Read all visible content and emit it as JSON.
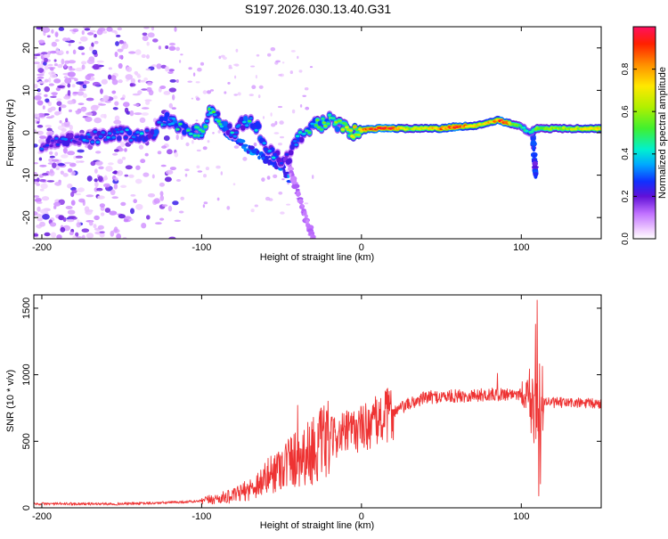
{
  "title": "S197.2026.030.13.40.G31",
  "chart_data": [
    {
      "type": "heatmap",
      "xlabel": "Height of straight line (km)",
      "ylabel": "Frequency (Hz)",
      "xlim": [
        -205,
        150
      ],
      "ylim": [
        -25,
        25
      ],
      "x_ticks": [
        -200,
        -100,
        0,
        100
      ],
      "y_ticks": [
        20,
        10,
        0,
        -10,
        -20
      ],
      "colorbar": {
        "label": "Normalized spectral amplitude",
        "range": [
          0,
          1
        ],
        "ticks": [
          0.0,
          0.2,
          0.4,
          0.6,
          0.8
        ],
        "tick_labels": [
          "0.0",
          "0.2",
          "0.4",
          "0.6",
          "0.8"
        ]
      },
      "ridge": {
        "x": [
          -200,
          -190,
          -175,
          -160,
          -150,
          -140,
          -130,
          -125,
          -120,
          -110,
          -100,
          -95,
          -90,
          -85,
          -80,
          -75,
          -70,
          -65,
          -60,
          -55,
          -50,
          -45,
          -40,
          -35,
          -30,
          -25,
          -20,
          -15,
          -10,
          -5,
          0,
          5,
          10,
          20,
          30,
          40,
          50,
          60,
          70,
          80,
          85,
          90,
          95,
          100,
          105,
          110,
          120,
          130,
          140,
          150
        ],
        "freq": [
          -3,
          -2,
          -1,
          -1,
          0,
          -1,
          0,
          3,
          3,
          1,
          0,
          5,
          4,
          1,
          0,
          2,
          3,
          1,
          -3,
          -5,
          -7,
          -6,
          -1,
          0,
          2,
          2,
          3,
          2,
          1,
          0,
          0.5,
          1,
          1,
          1,
          1,
          1,
          1,
          1.5,
          1.5,
          2.5,
          3,
          2.5,
          2,
          1.5,
          0,
          1,
          1,
          1,
          1,
          1
        ],
        "amp": [
          0.25,
          0.25,
          0.3,
          0.3,
          0.3,
          0.35,
          0.35,
          0.35,
          0.4,
          0.4,
          0.4,
          0.45,
          0.45,
          0.4,
          0.35,
          0.35,
          0.4,
          0.35,
          0.35,
          0.35,
          0.3,
          0.3,
          0.35,
          0.4,
          0.45,
          0.5,
          0.5,
          0.55,
          0.6,
          0.65,
          0.75,
          0.85,
          0.95,
          0.95,
          0.6,
          0.7,
          0.85,
          0.95,
          0.7,
          0.75,
          0.85,
          0.95,
          0.6,
          0.5,
          0.4,
          0.55,
          0.6,
          0.65,
          0.7,
          0.75
        ]
      },
      "branches": [
        {
          "x": [
            -85,
            -70,
            -60,
            -50,
            -45
          ],
          "freq": [
            0,
            -4,
            -6,
            -8,
            -11
          ],
          "amp": 0.3
        },
        {
          "x": [
            -45,
            -40,
            -35,
            -30
          ],
          "freq": [
            -8,
            -14,
            -20,
            -25
          ],
          "amp": 0.12
        },
        {
          "x": [
            107,
            108,
            109
          ],
          "freq": [
            1,
            -5,
            -10
          ],
          "amp": 0.25
        }
      ],
      "noise_region_x": [
        -205,
        -115
      ]
    },
    {
      "type": "line",
      "xlabel": "Height of straight line (km)",
      "ylabel": "SNR (10 * v/v)",
      "xlim": [
        -205,
        150
      ],
      "ylim": [
        0,
        1600
      ],
      "x_ticks": [
        -200,
        -100,
        0,
        100
      ],
      "y_ticks": [
        0,
        500,
        1000,
        1500
      ],
      "color": "#ee3333",
      "envelope": {
        "x": [
          -205,
          -150,
          -130,
          -100,
          -80,
          -70,
          -60,
          -50,
          -40,
          -30,
          -20,
          -10,
          0,
          10,
          20,
          30,
          40,
          60,
          80,
          100,
          105,
          108,
          110,
          112,
          115,
          120,
          130,
          150
        ],
        "mean": [
          30,
          30,
          35,
          50,
          90,
          140,
          220,
          320,
          380,
          430,
          520,
          560,
          600,
          650,
          720,
          780,
          830,
          840,
          850,
          860,
          850,
          700,
          800,
          830,
          800,
          790,
          790,
          780
        ]
      },
      "spikes": [
        {
          "x": -40,
          "value": 770
        },
        {
          "x": -30,
          "value": 680
        },
        {
          "x": 85,
          "value": 1010
        },
        {
          "x": 109,
          "value": 1380
        },
        {
          "x": 110,
          "value": 1560
        },
        {
          "x": 111,
          "value": 90
        },
        {
          "x": 112,
          "value": 180
        }
      ]
    }
  ]
}
